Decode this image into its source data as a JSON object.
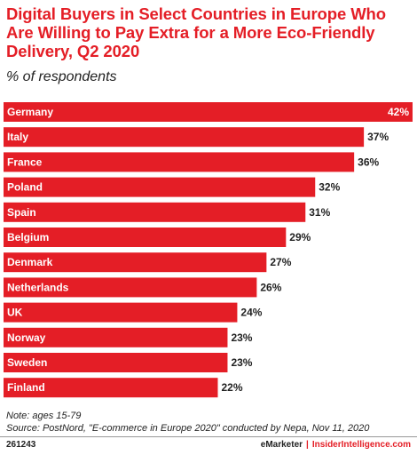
{
  "title": "Digital Buyers in Select Countries in Europe Who Are Willing to Pay Extra for a More Eco-Friendly Delivery, Q2 2020",
  "subtitle": "% of respondents",
  "colors": {
    "bar": "#e41e26",
    "title": "#e41e26"
  },
  "chart_data": {
    "type": "bar",
    "orientation": "horizontal",
    "categories": [
      "Germany",
      "Italy",
      "France",
      "Poland",
      "Spain",
      "Belgium",
      "Denmark",
      "Netherlands",
      "UK",
      "Norway",
      "Sweden",
      "Finland"
    ],
    "values": [
      42,
      37,
      36,
      32,
      31,
      29,
      27,
      26,
      24,
      23,
      23,
      22
    ],
    "value_labels": [
      "42%",
      "37%",
      "36%",
      "32%",
      "31%",
      "29%",
      "27%",
      "26%",
      "24%",
      "23%",
      "23%",
      "22%"
    ],
    "xlim": [
      0,
      42
    ],
    "grid": false,
    "legend": "none"
  },
  "note": "Note: ages 15-79",
  "source": "Source: PostNord, \"E-commerce in Europe 2020\" conducted by Nepa, Nov 11, 2020",
  "chart_id": "261243",
  "brand": {
    "emarketer": "eMarketer",
    "separator": "|",
    "insider": "InsiderIntelligence.com"
  }
}
